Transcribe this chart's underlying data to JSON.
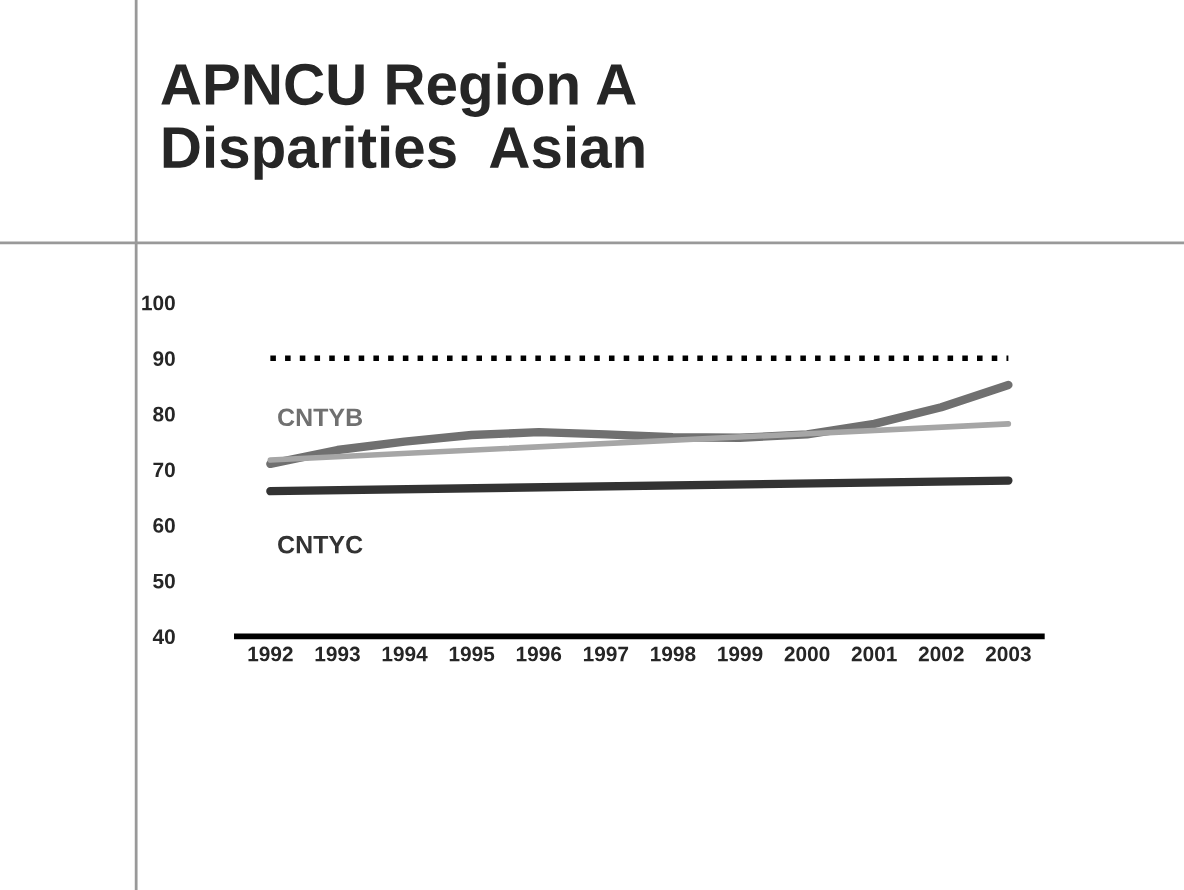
{
  "chart_data": {
    "type": "line",
    "title": "APNCU Region A\nDisparities  Asian",
    "categories": [
      "1992",
      "1993",
      "1994",
      "1995",
      "1996",
      "1997",
      "1998",
      "1999",
      "2000",
      "2001",
      "2002",
      "2003"
    ],
    "series": [
      {
        "name": "CNTYB",
        "color": "#707070",
        "values": [
          71,
          73.5,
          75,
          76.2,
          76.7,
          76.3,
          75.8,
          75.7,
          76.3,
          78.2,
          81.2,
          85.2
        ]
      },
      {
        "color": "#a6a6a6",
        "values": [
          71.7,
          null,
          null,
          null,
          null,
          null,
          null,
          null,
          null,
          null,
          null,
          78.2
        ]
      },
      {
        "name": "CNTYC",
        "color": "#333333",
        "values": [
          66.1,
          null,
          null,
          null,
          null,
          null,
          null,
          null,
          null,
          null,
          null,
          68
        ]
      }
    ],
    "ylim": [
      40,
      100
    ],
    "yticks": [
      40,
      50,
      60,
      70,
      80,
      90,
      100
    ],
    "ref_lines": [
      {
        "axis": "y",
        "value": 90,
        "color": "#000000",
        "line_style": "dotted"
      }
    ],
    "grid": false,
    "legend": false,
    "marker": "none",
    "line_style": "solid"
  }
}
